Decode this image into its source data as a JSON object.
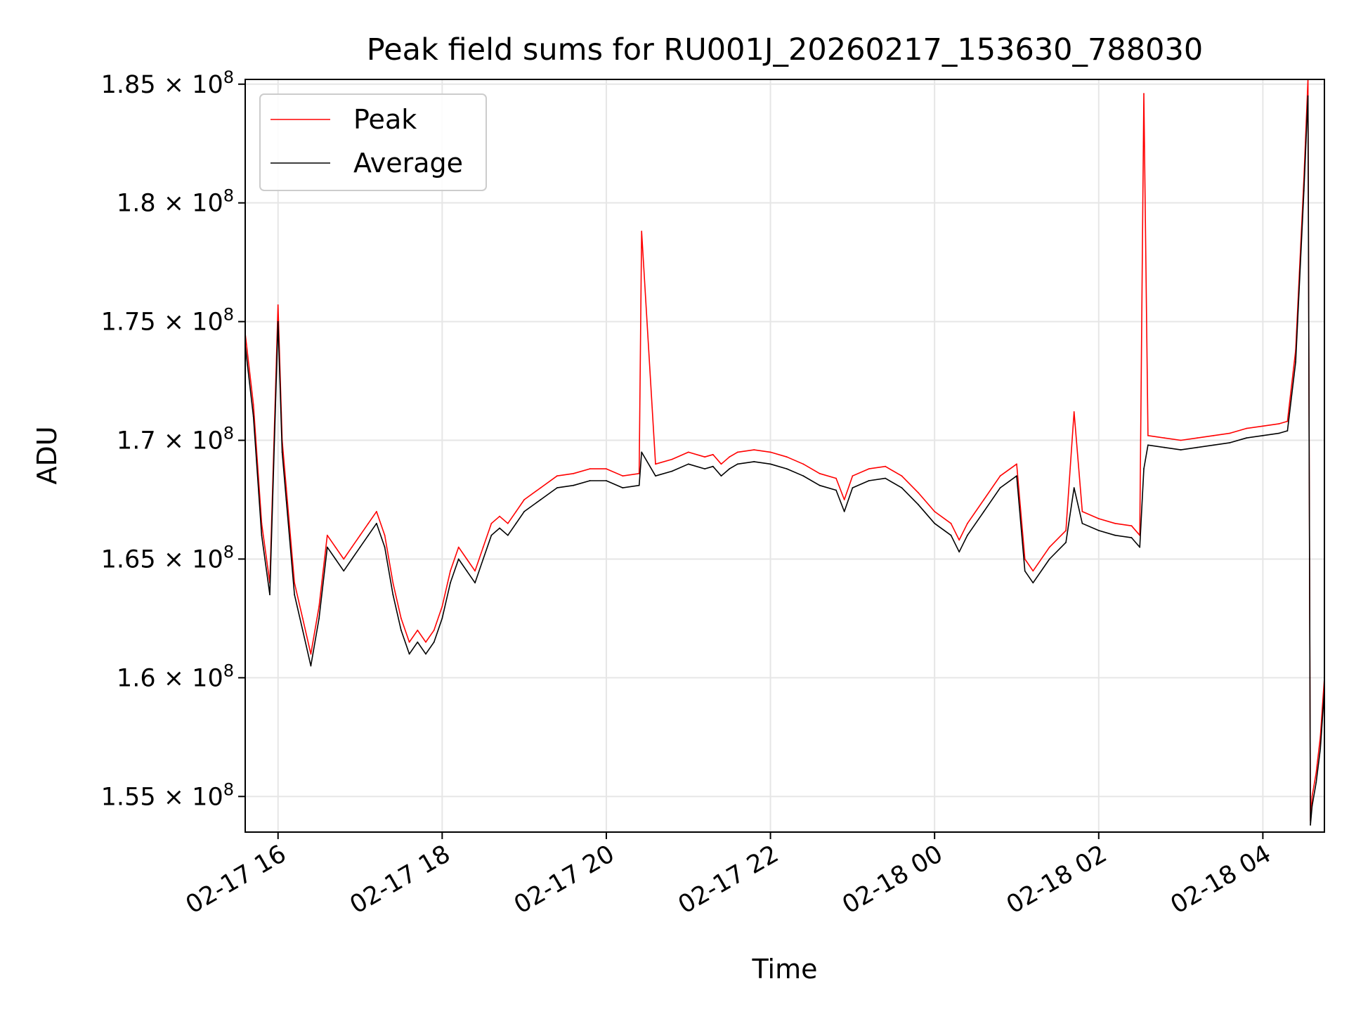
{
  "chart_data": {
    "type": "line",
    "title": "Peak field sums for RU001J_20260217_153630_788030",
    "xlabel": "Time",
    "ylabel": "ADU",
    "grid": true,
    "legend_position": "top-left",
    "x_range_hours": [
      15.6,
      28.75
    ],
    "ylim": [
      153500000,
      185200000
    ],
    "y_ticks": [
      {
        "value": 155000000,
        "mantissa": "1.55"
      },
      {
        "value": 160000000,
        "mantissa": "1.6"
      },
      {
        "value": 165000000,
        "mantissa": "1.65"
      },
      {
        "value": 170000000,
        "mantissa": "1.7"
      },
      {
        "value": 175000000,
        "mantissa": "1.75"
      },
      {
        "value": 180000000,
        "mantissa": "1.8"
      },
      {
        "value": 185000000,
        "mantissa": "1.85"
      }
    ],
    "y_tick_multiplier": "× 10",
    "y_tick_exponent": "8",
    "x_ticks": [
      {
        "value": 16,
        "label": "02-17 16"
      },
      {
        "value": 18,
        "label": "02-17 18"
      },
      {
        "value": 20,
        "label": "02-17 20"
      },
      {
        "value": 22,
        "label": "02-17 22"
      },
      {
        "value": 24,
        "label": "02-18 00"
      },
      {
        "value": 26,
        "label": "02-18 02"
      },
      {
        "value": 28,
        "label": "02-18 04"
      }
    ],
    "series": [
      {
        "name": "Peak",
        "color": "#ff0000",
        "x": [
          15.6,
          15.7,
          15.8,
          15.9,
          16.0,
          16.05,
          16.1,
          16.2,
          16.3,
          16.4,
          16.5,
          16.6,
          16.7,
          16.8,
          16.9,
          17.0,
          17.1,
          17.2,
          17.3,
          17.4,
          17.5,
          17.6,
          17.7,
          17.8,
          17.9,
          18.0,
          18.1,
          18.2,
          18.3,
          18.4,
          18.5,
          18.6,
          18.7,
          18.8,
          18.9,
          19.0,
          19.2,
          19.4,
          19.6,
          19.8,
          20.0,
          20.2,
          20.4,
          20.43,
          20.6,
          20.8,
          21.0,
          21.2,
          21.3,
          21.4,
          21.5,
          21.6,
          21.8,
          22.0,
          22.2,
          22.4,
          22.6,
          22.8,
          22.9,
          23.0,
          23.2,
          23.4,
          23.6,
          23.8,
          24.0,
          24.2,
          24.3,
          24.4,
          24.6,
          24.8,
          25.0,
          25.1,
          25.2,
          25.4,
          25.6,
          25.7,
          25.8,
          26.0,
          26.2,
          26.4,
          26.5,
          26.55,
          26.6,
          26.8,
          27.0,
          27.2,
          27.4,
          27.6,
          27.8,
          28.0,
          28.2,
          28.3,
          28.4,
          28.5,
          28.55,
          28.58,
          28.6,
          28.65,
          28.7,
          28.75
        ],
        "values": [
          174500000,
          171500000,
          166500000,
          164000000,
          175700000,
          170000000,
          168000000,
          164000000,
          162500000,
          161000000,
          163000000,
          166000000,
          165500000,
          165000000,
          165500000,
          166000000,
          166500000,
          167000000,
          166000000,
          164000000,
          162500000,
          161500000,
          162000000,
          161500000,
          162000000,
          163000000,
          164500000,
          165500000,
          165000000,
          164500000,
          165500000,
          166500000,
          166800000,
          166500000,
          167000000,
          167500000,
          168000000,
          168500000,
          168600000,
          168800000,
          168800000,
          168500000,
          168600000,
          178800000,
          169000000,
          169200000,
          169500000,
          169300000,
          169400000,
          169000000,
          169300000,
          169500000,
          169600000,
          169500000,
          169300000,
          169000000,
          168600000,
          168400000,
          167500000,
          168500000,
          168800000,
          168900000,
          168500000,
          167800000,
          167000000,
          166500000,
          165800000,
          166500000,
          167500000,
          168500000,
          169000000,
          165000000,
          164500000,
          165500000,
          166200000,
          171200000,
          167000000,
          166700000,
          166500000,
          166400000,
          166000000,
          184600000,
          170200000,
          170100000,
          170000000,
          170100000,
          170200000,
          170300000,
          170500000,
          170600000,
          170700000,
          170800000,
          173800000,
          181000000,
          185200000,
          154000000,
          155000000,
          156000000,
          157500000,
          160000000
        ]
      },
      {
        "name": "Average",
        "color": "#000000",
        "x": [
          15.6,
          15.7,
          15.8,
          15.9,
          16.0,
          16.05,
          16.1,
          16.2,
          16.3,
          16.4,
          16.5,
          16.6,
          16.7,
          16.8,
          16.9,
          17.0,
          17.1,
          17.2,
          17.3,
          17.4,
          17.5,
          17.6,
          17.7,
          17.8,
          17.9,
          18.0,
          18.1,
          18.2,
          18.3,
          18.4,
          18.5,
          18.6,
          18.7,
          18.8,
          18.9,
          19.0,
          19.2,
          19.4,
          19.6,
          19.8,
          20.0,
          20.2,
          20.4,
          20.43,
          20.6,
          20.8,
          21.0,
          21.2,
          21.3,
          21.4,
          21.5,
          21.6,
          21.8,
          22.0,
          22.2,
          22.4,
          22.6,
          22.8,
          22.9,
          23.0,
          23.2,
          23.4,
          23.6,
          23.8,
          24.0,
          24.2,
          24.3,
          24.4,
          24.6,
          24.8,
          25.0,
          25.1,
          25.2,
          25.4,
          25.6,
          25.7,
          25.8,
          26.0,
          26.2,
          26.4,
          26.5,
          26.55,
          26.6,
          26.8,
          27.0,
          27.2,
          27.4,
          27.6,
          27.8,
          28.0,
          28.2,
          28.3,
          28.4,
          28.5,
          28.55,
          28.58,
          28.6,
          28.65,
          28.7,
          28.75
        ],
        "values": [
          174000000,
          171000000,
          166000000,
          163500000,
          175000000,
          169500000,
          167500000,
          163500000,
          162000000,
          160500000,
          162500000,
          165500000,
          165000000,
          164500000,
          165000000,
          165500000,
          166000000,
          166500000,
          165500000,
          163500000,
          162000000,
          161000000,
          161500000,
          161000000,
          161500000,
          162500000,
          164000000,
          165000000,
          164500000,
          164000000,
          165000000,
          166000000,
          166300000,
          166000000,
          166500000,
          167000000,
          167500000,
          168000000,
          168100000,
          168300000,
          168300000,
          168000000,
          168100000,
          169500000,
          168500000,
          168700000,
          169000000,
          168800000,
          168900000,
          168500000,
          168800000,
          169000000,
          169100000,
          169000000,
          168800000,
          168500000,
          168100000,
          167900000,
          167000000,
          168000000,
          168300000,
          168400000,
          168000000,
          167300000,
          166500000,
          166000000,
          165300000,
          166000000,
          167000000,
          168000000,
          168500000,
          164500000,
          164000000,
          165000000,
          165700000,
          168000000,
          166500000,
          166200000,
          166000000,
          165900000,
          165500000,
          168800000,
          169800000,
          169700000,
          169600000,
          169700000,
          169800000,
          169900000,
          170100000,
          170200000,
          170300000,
          170400000,
          173300000,
          180500000,
          184500000,
          153800000,
          154600000,
          155600000,
          157000000,
          159500000
        ]
      }
    ]
  }
}
